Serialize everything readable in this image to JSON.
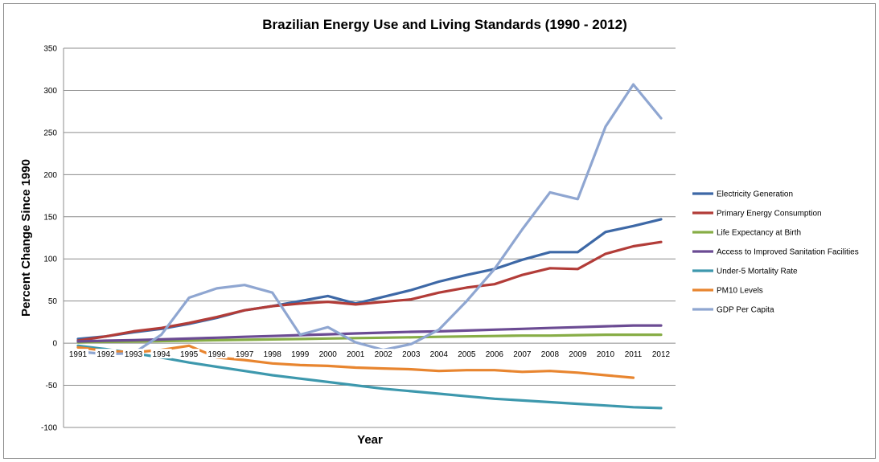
{
  "chart_data": {
    "type": "line",
    "title": "Brazilian Energy Use and Living Standards (1990 - 2012)",
    "xlabel": "Year",
    "ylabel": "Percent Change Since 1990",
    "ylim": [
      -100,
      350
    ],
    "yticks": [
      -100,
      -50,
      0,
      50,
      100,
      150,
      200,
      250,
      300,
      350
    ],
    "grid": "horizontal",
    "legend_position": "right",
    "categories": [
      "1991",
      "1992",
      "1993",
      "1994",
      "1995",
      "1996",
      "1997",
      "1998",
      "1999",
      "2000",
      "2001",
      "2002",
      "2003",
      "2004",
      "2005",
      "2006",
      "2007",
      "2008",
      "2009",
      "2010",
      "2011",
      "2012"
    ],
    "series": [
      {
        "name": "Electricity Generation",
        "color": "#3d68a6",
        "values": [
          5,
          8,
          13,
          17,
          23,
          30,
          39,
          44,
          50,
          56,
          47,
          55,
          63,
          73,
          81,
          88,
          99,
          108,
          108,
          132,
          139,
          147
        ]
      },
      {
        "name": "Primary Energy Consumption",
        "color": "#b23c38",
        "values": [
          3,
          8,
          14,
          18,
          24,
          31,
          39,
          44,
          47,
          49,
          46,
          49,
          52,
          60,
          66,
          70,
          81,
          89,
          88,
          106,
          115,
          120
        ]
      },
      {
        "name": "Life Expectancy at Birth",
        "color": "#87ad46",
        "values": [
          1,
          1.5,
          2,
          2.5,
          3,
          3.5,
          4,
          4.5,
          5,
          5.5,
          6,
          6.5,
          7,
          7.5,
          8,
          8.5,
          9,
          9,
          9.5,
          10,
          10,
          10
        ]
      },
      {
        "name": "Access to Improved Sanitation Facilities",
        "color": "#6b4b93",
        "values": [
          2,
          3,
          3.5,
          4.5,
          5.5,
          6.5,
          7.5,
          8.5,
          9.5,
          10.5,
          11.5,
          12.5,
          13.5,
          14,
          15,
          16,
          17,
          18,
          19,
          20,
          21,
          21
        ]
      },
      {
        "name": "Under-5 Mortality Rate",
        "color": "#3d98ad",
        "values": [
          -3,
          -7,
          -12,
          -17,
          -23,
          -28,
          -33,
          -38,
          -42,
          -46,
          -50,
          -54,
          -57,
          -60,
          -63,
          -66,
          -68,
          -70,
          -72,
          -74,
          -76,
          -77
        ]
      },
      {
        "name": "PM10 Levels",
        "color": "#e8852f",
        "values": [
          -5,
          -9,
          -11,
          -8,
          -3,
          -17,
          -20,
          -24,
          -26,
          -27,
          -29,
          -30,
          -31,
          -33,
          -32,
          -32,
          -34,
          -33,
          -35,
          -38,
          -41,
          null
        ]
      },
      {
        "name": "GDP Per Capita",
        "color": "#8fa6d1",
        "values": [
          -10,
          -13,
          -12,
          10,
          54,
          65,
          69,
          60,
          10,
          19,
          1,
          -8,
          -1,
          16,
          50,
          88,
          135,
          179,
          171,
          257,
          307,
          267
        ]
      }
    ]
  }
}
